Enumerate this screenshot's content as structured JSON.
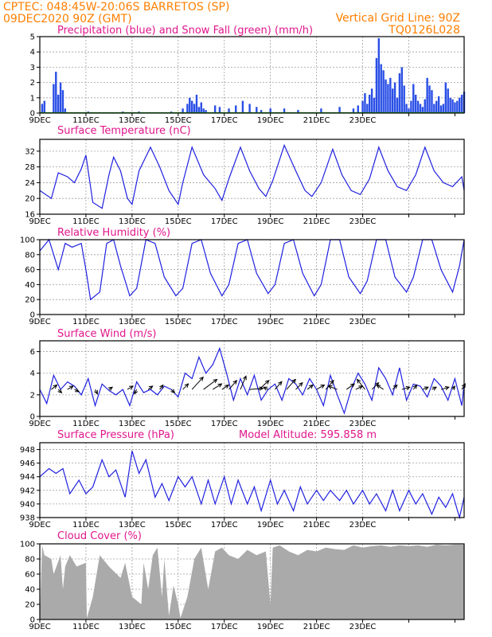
{
  "header": {
    "line1": "CPTEC:   048:45W-20:06S   BARRETOS (SP)",
    "line2_left": "09DEC2020 90Z (GMT)",
    "line2_right": "Vertical Grid Line: 90Z",
    "line3_right": "TQ0126L028"
  },
  "colors": {
    "header": "#ff7f00",
    "panel_title": "#e0168c",
    "line": "#2020e0",
    "precip": "#2a4fe6",
    "snow": "#22aa22",
    "cloud": "#aaaaaa",
    "grid": "#a0a0a0"
  },
  "x_labels": [
    "9DEC",
    "11DEC",
    "13DEC",
    "15DEC",
    "17DEC",
    "19DEC",
    "21DEC",
    "23DEC"
  ],
  "chart_data": [
    {
      "id": "precip",
      "type": "bar",
      "title": "Precipitation (blue) and Snow Fall (green) (mm/h)",
      "ylim": [
        0,
        5
      ],
      "yticks": [
        0,
        1,
        2,
        3,
        4,
        5
      ],
      "x": [
        0.05,
        0.1,
        0.3,
        0.35,
        0.4,
        0.45,
        0.5,
        0.55,
        1.05,
        1.8,
        2.15,
        2.85,
        3.1,
        3.2,
        3.25,
        3.3,
        3.35,
        3.4,
        3.45,
        3.5,
        3.55,
        3.6,
        3.8,
        3.9,
        4.1,
        4.25,
        4.4,
        4.55,
        4.7,
        4.8,
        5.0,
        5.3,
        5.6,
        6.1,
        6.5,
        6.8,
        6.9,
        7.0,
        7.05,
        7.1,
        7.15,
        7.2,
        7.25,
        7.3,
        7.35,
        7.4,
        7.45,
        7.5,
        7.55,
        7.6,
        7.65,
        7.7,
        7.75,
        7.8,
        7.85,
        7.9,
        7.95,
        8.0,
        8.05,
        8.1,
        8.15,
        8.2,
        8.25,
        8.3,
        8.35,
        8.4,
        8.45,
        8.5,
        8.55,
        8.6,
        8.65,
        8.7,
        8.75,
        8.8,
        8.85,
        8.9,
        8.95,
        9.0,
        9.05,
        9.1,
        9.15,
        9.2
      ],
      "values": [
        0.6,
        0.8,
        1.9,
        2.7,
        1.2,
        2.0,
        1.5,
        0.3,
        0.1,
        0.1,
        0.1,
        0.1,
        0.3,
        0.6,
        1.0,
        0.8,
        0.6,
        1.2,
        0.4,
        0.7,
        0.3,
        0.2,
        0.5,
        0.4,
        0.3,
        0.5,
        0.8,
        0.6,
        0.4,
        0.2,
        0.3,
        0.3,
        0.2,
        0.3,
        0.4,
        0.3,
        0.5,
        0.8,
        1.3,
        0.6,
        1.2,
        1.6,
        1.0,
        3.6,
        4.9,
        3.2,
        2.8,
        2.2,
        1.9,
        2.3,
        1.6,
        2.0,
        1.0,
        2.6,
        3.0,
        1.8,
        0.6,
        0.3,
        0.8,
        1.9,
        1.2,
        0.8,
        0.6,
        0.4,
        0.9,
        2.3,
        1.8,
        1.5,
        0.6,
        0.8,
        1.1,
        0.5,
        0.6,
        2.0,
        1.6,
        1.0,
        0.9,
        0.7,
        0.8,
        1.0,
        1.2,
        1.4
      ],
      "snow": 0.02
    },
    {
      "id": "temperature",
      "type": "line",
      "title": "Surface Temperature (nC)",
      "ylim": [
        16,
        35
      ],
      "yticks": [
        16,
        20,
        24,
        28,
        32
      ],
      "x": [
        0,
        0.25,
        0.4,
        0.6,
        0.75,
        0.9,
        1.0,
        1.15,
        1.35,
        1.5,
        1.6,
        1.75,
        1.9,
        2.0,
        2.15,
        2.4,
        2.6,
        2.8,
        3.0,
        3.1,
        3.3,
        3.55,
        3.8,
        3.95,
        4.1,
        4.35,
        4.55,
        4.75,
        4.9,
        5.05,
        5.3,
        5.55,
        5.75,
        5.9,
        6.1,
        6.35,
        6.55,
        6.75,
        6.95,
        7.15,
        7.35,
        7.55,
        7.75,
        7.95,
        8.15,
        8.35,
        8.55,
        8.75,
        8.95,
        9.15,
        9.2
      ],
      "values": [
        22.0,
        20.0,
        26.5,
        25.5,
        24.0,
        27.5,
        31.0,
        19.0,
        17.5,
        26.0,
        30.5,
        27.0,
        20.0,
        18.5,
        27.0,
        33.0,
        28.0,
        22.0,
        18.5,
        24.0,
        33.0,
        26.0,
        22.5,
        19.5,
        25.0,
        33.0,
        27.0,
        22.5,
        20.5,
        24.5,
        33.5,
        27.0,
        22.0,
        20.5,
        24.0,
        32.5,
        26.0,
        22.0,
        21.0,
        25.0,
        33.0,
        27.0,
        23.0,
        22.0,
        26.0,
        33.0,
        27.0,
        24.0,
        23.0,
        25.5,
        22.0
      ]
    },
    {
      "id": "humidity",
      "type": "line",
      "title": "Relative Humidity (%)",
      "ylim": [
        0,
        100
      ],
      "yticks": [
        0,
        20,
        40,
        60,
        80,
        100
      ],
      "x": [
        0,
        0.2,
        0.4,
        0.55,
        0.7,
        0.9,
        1.0,
        1.1,
        1.3,
        1.45,
        1.6,
        1.75,
        1.95,
        2.1,
        2.3,
        2.5,
        2.7,
        2.95,
        3.1,
        3.3,
        3.5,
        3.7,
        3.95,
        4.1,
        4.3,
        4.5,
        4.7,
        4.95,
        5.1,
        5.3,
        5.5,
        5.7,
        5.95,
        6.1,
        6.3,
        6.5,
        6.7,
        6.95,
        7.1,
        7.3,
        7.5,
        7.7,
        7.95,
        8.1,
        8.3,
        8.5,
        8.7,
        8.95,
        9.1,
        9.2
      ],
      "values": [
        85.0,
        100.0,
        60.0,
        95.0,
        90.0,
        95.0,
        60.0,
        20.0,
        30.0,
        95.0,
        100.0,
        65.0,
        25.0,
        35.0,
        100.0,
        95.0,
        50.0,
        25.0,
        35.0,
        95.0,
        100.0,
        55.0,
        25.0,
        40.0,
        95.0,
        100.0,
        55.0,
        28.0,
        40.0,
        95.0,
        100.0,
        55.0,
        25.0,
        40.0,
        100.0,
        100.0,
        50.0,
        28.0,
        45.0,
        100.0,
        100.0,
        50.0,
        30.0,
        50.0,
        100.0,
        100.0,
        60.0,
        30.0,
        65.0,
        100.0
      ]
    },
    {
      "id": "wind",
      "type": "line",
      "title": "Surface Wind (m/s)",
      "ylim": [
        0,
        7
      ],
      "yticks": [
        0,
        2,
        4,
        6
      ],
      "x": [
        0,
        0.15,
        0.3,
        0.45,
        0.6,
        0.75,
        0.9,
        1.05,
        1.2,
        1.35,
        1.5,
        1.65,
        1.8,
        1.95,
        2.1,
        2.25,
        2.4,
        2.55,
        2.7,
        2.85,
        3.0,
        3.15,
        3.3,
        3.45,
        3.6,
        3.75,
        3.9,
        4.05,
        4.2,
        4.35,
        4.5,
        4.65,
        4.8,
        4.95,
        5.1,
        5.25,
        5.4,
        5.55,
        5.7,
        5.85,
        6.0,
        6.15,
        6.3,
        6.45,
        6.6,
        6.75,
        6.9,
        7.05,
        7.2,
        7.35,
        7.5,
        7.65,
        7.8,
        7.95,
        8.1,
        8.25,
        8.4,
        8.55,
        8.7,
        8.85,
        9.0,
        9.15,
        9.2
      ],
      "values": [
        2.5,
        1.2,
        3.8,
        2.5,
        3.2,
        2.8,
        2.0,
        3.5,
        1.0,
        3.0,
        2.4,
        2.0,
        2.5,
        1.0,
        3.2,
        2.2,
        2.5,
        2.0,
        2.8,
        2.5,
        1.8,
        4.0,
        3.5,
        5.5,
        4.0,
        4.8,
        6.3,
        4.0,
        1.5,
        3.5,
        2.0,
        3.8,
        1.5,
        2.5,
        3.0,
        1.5,
        3.5,
        3.0,
        2.0,
        3.5,
        2.5,
        1.0,
        3.8,
        2.0,
        0.3,
        2.5,
        4.0,
        3.0,
        1.5,
        4.5,
        3.5,
        2.0,
        4.5,
        1.5,
        3.0,
        2.8,
        1.8,
        3.5,
        2.8,
        1.5,
        3.5,
        1.0,
        3.0
      ],
      "arrows": {
        "x": [
          0.25,
          0.4,
          0.6,
          0.75,
          1.2,
          1.5,
          1.9,
          2.1,
          2.35,
          2.6,
          2.85,
          3.1,
          3.3,
          3.55,
          3.75,
          3.95,
          4.1,
          4.35,
          4.55,
          4.75,
          4.95,
          5.1,
          5.35,
          5.55,
          5.8,
          6.0,
          6.2,
          6.45,
          6.65,
          6.85,
          7.05,
          7.2,
          7.45,
          7.65,
          7.85,
          8.1,
          8.3,
          8.5,
          8.7,
          8.95,
          9.15
        ],
        "u": [
          0.5,
          0.3,
          0.5,
          0.4,
          0.2,
          0.3,
          0.5,
          -0.2,
          0.4,
          0.3,
          0.3,
          0.5,
          1.0,
          1.2,
          0.8,
          0.6,
          0.7,
          0.5,
          1.2,
          0.9,
          -0.4,
          0.6,
          0.8,
          0.6,
          0.5,
          0.7,
          0.7,
          -0.8,
          0.7,
          0.6,
          -0.7,
          0.6,
          -0.6,
          0.4,
          0.7,
          0.3,
          0.5,
          0.4,
          0.7,
          0.2,
          0.3
        ],
        "v": [
          0.4,
          -0.3,
          0.3,
          -0.2,
          -0.4,
          0.2,
          0.3,
          -0.4,
          0.3,
          0.4,
          -0.3,
          0.5,
          1.1,
          0.9,
          0.5,
          0.4,
          0.8,
          1.2,
          0.1,
          0.8,
          0.2,
          0.7,
          0.9,
          0.6,
          0.4,
          0.4,
          0.8,
          0.3,
          0.5,
          0.3,
          0.9,
          0.6,
          0.4,
          0.4,
          0.2,
          0.4,
          0.2,
          0.2,
          0.2,
          0.3,
          0.5
        ]
      }
    },
    {
      "id": "pressure",
      "type": "line",
      "title": "Surface Pressure (hPa)",
      "annotation": "Model Altitude: 595.858 m",
      "ylim": [
        938,
        949
      ],
      "yticks": [
        938,
        940,
        942,
        944,
        946,
        948
      ],
      "x": [
        0,
        0.2,
        0.35,
        0.5,
        0.65,
        0.85,
        1.0,
        1.15,
        1.35,
        1.5,
        1.65,
        1.85,
        2.0,
        2.15,
        2.3,
        2.5,
        2.65,
        2.8,
        3.0,
        3.15,
        3.3,
        3.5,
        3.65,
        3.8,
        4.0,
        4.15,
        4.3,
        4.5,
        4.65,
        4.8,
        5.0,
        5.15,
        5.3,
        5.5,
        5.65,
        5.8,
        6.0,
        6.15,
        6.3,
        6.5,
        6.65,
        6.8,
        7.0,
        7.15,
        7.3,
        7.5,
        7.65,
        7.8,
        8.0,
        8.15,
        8.3,
        8.5,
        8.65,
        8.8,
        8.95,
        9.1,
        9.2
      ],
      "values": [
        944.0,
        945.2,
        944.5,
        945.2,
        941.5,
        943.5,
        941.5,
        942.5,
        946.5,
        944.0,
        945.0,
        941.0,
        947.8,
        944.5,
        946.5,
        941.0,
        943.0,
        940.5,
        944.0,
        942.5,
        944.0,
        940.0,
        943.5,
        940.0,
        944.0,
        940.0,
        943.5,
        940.0,
        942.5,
        939.0,
        943.5,
        940.0,
        942.0,
        939.0,
        942.5,
        940.0,
        942.0,
        940.5,
        942.0,
        940.5,
        942.0,
        940.0,
        942.0,
        940.0,
        941.5,
        939.0,
        942.0,
        939.0,
        942.0,
        940.0,
        941.5,
        938.5,
        941.0,
        939.5,
        941.5,
        938.0,
        941.0
      ]
    },
    {
      "id": "cloud",
      "type": "area",
      "title": "Cloud Cover (%)",
      "ylim": [
        0,
        100
      ],
      "yticks": [
        0,
        20,
        40,
        60,
        80,
        100
      ],
      "x": [
        0,
        0.05,
        0.1,
        0.25,
        0.3,
        0.45,
        0.5,
        0.55,
        0.65,
        0.8,
        1.0,
        1.02,
        1.15,
        1.3,
        1.5,
        1.75,
        1.85,
        2.0,
        2.2,
        2.25,
        2.35,
        2.45,
        2.55,
        2.65,
        2.7,
        2.8,
        2.9,
        3.0,
        3.05,
        3.2,
        3.35,
        3.5,
        3.65,
        3.8,
        3.95,
        4.1,
        4.3,
        4.5,
        4.7,
        4.9,
        5.0,
        5.05,
        5.2,
        5.4,
        5.6,
        5.8,
        6.0,
        6.2,
        6.4,
        6.6,
        6.8,
        7.0,
        7.2,
        7.4,
        7.6,
        7.8,
        8.0,
        8.2,
        8.4,
        8.6,
        8.8,
        9.0,
        9.2
      ],
      "values": [
        0,
        98.0,
        85.0,
        80.0,
        60.0,
        85.0,
        40.0,
        70.0,
        85.0,
        70.0,
        75.0,
        2.0,
        30.0,
        85.0,
        70.0,
        55.0,
        75.0,
        30.0,
        20.0,
        75.0,
        40.0,
        85.0,
        95.0,
        30.0,
        80.0,
        5.0,
        45.0,
        20.0,
        2.0,
        30.0,
        80.0,
        95.0,
        40.0,
        90.0,
        95.0,
        85.0,
        80.0,
        92.0,
        85.0,
        90.0,
        20.0,
        95.0,
        98.0,
        90.0,
        85.0,
        92.0,
        90.0,
        95.0,
        93.0,
        92.0,
        98.0,
        95.0,
        97.0,
        98.0,
        96.0,
        98.0,
        97.0,
        98.0,
        96.0,
        99.0,
        98.0,
        99.0,
        99.0
      ]
    }
  ]
}
